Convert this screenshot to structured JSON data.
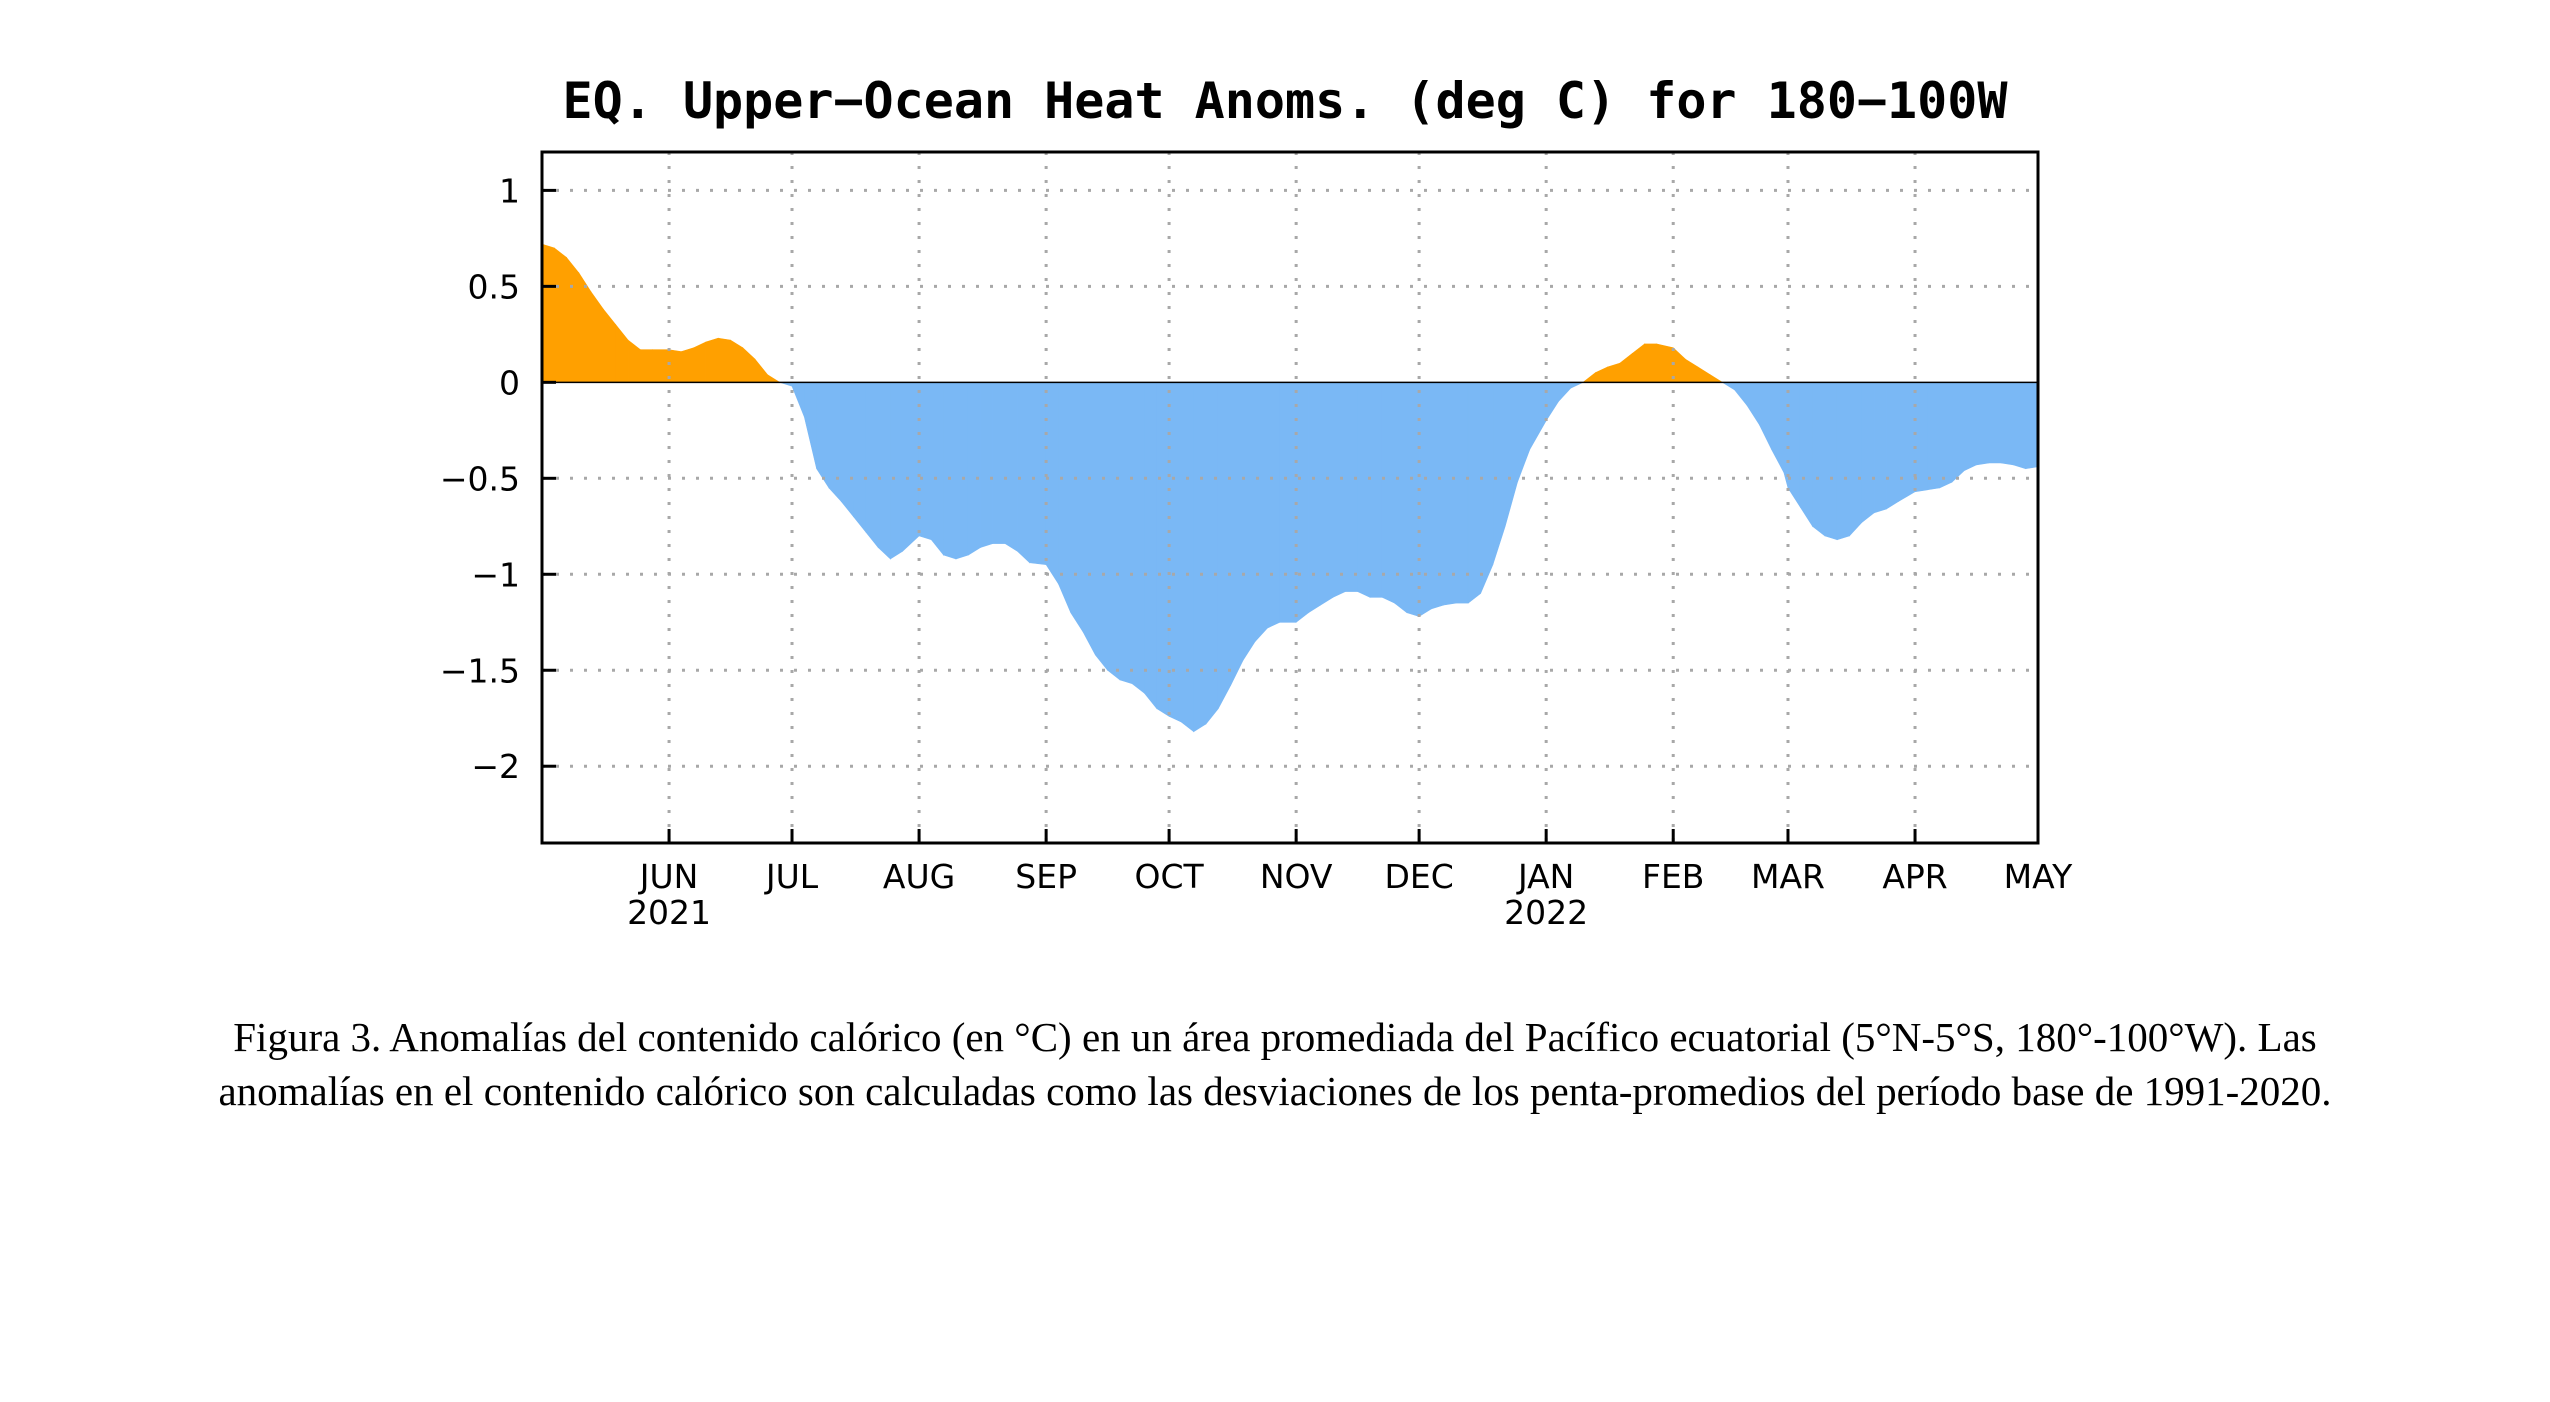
{
  "chart_data": {
    "type": "area",
    "title": "EQ. Upper−Ocean Heat Anoms. (deg C) for 180−100W",
    "ylim": [
      -2.4,
      1.2
    ],
    "xlim": [
      "2021-05-01",
      "2022-05-01"
    ],
    "y_ticks": [
      {
        "value": 1,
        "label": "1"
      },
      {
        "value": 0.5,
        "label": "0.5"
      },
      {
        "value": 0,
        "label": "0"
      },
      {
        "value": -0.5,
        "label": "−0.5"
      },
      {
        "value": -1,
        "label": "−1"
      },
      {
        "value": -1.5,
        "label": "−1.5"
      },
      {
        "value": -2,
        "label": "−2"
      }
    ],
    "x_ticks": [
      {
        "date": "2021-06-01",
        "label": "JUN",
        "sublabel": "2021"
      },
      {
        "date": "2021-07-01",
        "label": "JUL",
        "sublabel": ""
      },
      {
        "date": "2021-08-01",
        "label": "AUG",
        "sublabel": ""
      },
      {
        "date": "2021-09-01",
        "label": "SEP",
        "sublabel": ""
      },
      {
        "date": "2021-10-01",
        "label": "OCT",
        "sublabel": ""
      },
      {
        "date": "2021-11-01",
        "label": "NOV",
        "sublabel": ""
      },
      {
        "date": "2021-12-01",
        "label": "DEC",
        "sublabel": ""
      },
      {
        "date": "2022-01-01",
        "label": "JAN",
        "sublabel": "2022"
      },
      {
        "date": "2022-02-01",
        "label": "FEB",
        "sublabel": ""
      },
      {
        "date": "2022-03-01",
        "label": "MAR",
        "sublabel": ""
      },
      {
        "date": "2022-04-01",
        "label": "APR",
        "sublabel": ""
      },
      {
        "date": "2022-05-01",
        "label": "MAY",
        "sublabel": ""
      }
    ],
    "grid": true,
    "colors": {
      "positive": "#ffa000",
      "negative": "#7ab8f5"
    },
    "series": [
      {
        "x": [
          "2021-05-01",
          "2021-05-04",
          "2021-05-07",
          "2021-05-10",
          "2021-05-13",
          "2021-05-16",
          "2021-05-19",
          "2021-05-22",
          "2021-05-25",
          "2021-05-28",
          "2021-06-01",
          "2021-06-04",
          "2021-06-07",
          "2021-06-10",
          "2021-06-13",
          "2021-06-16",
          "2021-06-19",
          "2021-06-22",
          "2021-06-25",
          "2021-06-28",
          "2021-07-01",
          "2021-07-04",
          "2021-07-07",
          "2021-07-10",
          "2021-07-13",
          "2021-07-16",
          "2021-07-19",
          "2021-07-22",
          "2021-07-25",
          "2021-07-28",
          "2021-08-01",
          "2021-08-04",
          "2021-08-07",
          "2021-08-10",
          "2021-08-13",
          "2021-08-16",
          "2021-08-19",
          "2021-08-22",
          "2021-08-25",
          "2021-08-28",
          "2021-09-01",
          "2021-09-04",
          "2021-09-07",
          "2021-09-10",
          "2021-09-13",
          "2021-09-16",
          "2021-09-19",
          "2021-09-22",
          "2021-09-25",
          "2021-09-28",
          "2021-10-01",
          "2021-10-04",
          "2021-10-07",
          "2021-10-10",
          "2021-10-13",
          "2021-10-16",
          "2021-10-19",
          "2021-10-22",
          "2021-10-25",
          "2021-10-28",
          "2021-11-01",
          "2021-11-04",
          "2021-11-07",
          "2021-11-10",
          "2021-11-13",
          "2021-11-16",
          "2021-11-19",
          "2021-11-22",
          "2021-11-25",
          "2021-11-28",
          "2021-12-01",
          "2021-12-04",
          "2021-12-07",
          "2021-12-10",
          "2021-12-13",
          "2021-12-16",
          "2021-12-19",
          "2021-12-22",
          "2021-12-25",
          "2021-12-28",
          "2022-01-01",
          "2022-01-04",
          "2022-01-07",
          "2022-01-10",
          "2022-01-13",
          "2022-01-16",
          "2022-01-19",
          "2022-01-22",
          "2022-01-25",
          "2022-01-28",
          "2022-02-01",
          "2022-02-04",
          "2022-02-07",
          "2022-02-10",
          "2022-02-13",
          "2022-02-16",
          "2022-02-19",
          "2022-02-22",
          "2022-02-25",
          "2022-02-28",
          "2022-03-01",
          "2022-03-04",
          "2022-03-07",
          "2022-03-10",
          "2022-03-13",
          "2022-03-16",
          "2022-03-19",
          "2022-03-22",
          "2022-03-25",
          "2022-03-28",
          "2022-04-01",
          "2022-04-04",
          "2022-04-07",
          "2022-04-10",
          "2022-04-13",
          "2022-04-16",
          "2022-04-19",
          "2022-04-22",
          "2022-04-25",
          "2022-04-28",
          "2022-05-01"
        ],
        "y": [
          0.72,
          0.7,
          0.65,
          0.57,
          0.47,
          0.38,
          0.3,
          0.22,
          0.17,
          0.17,
          0.17,
          0.16,
          0.18,
          0.21,
          0.23,
          0.22,
          0.18,
          0.12,
          0.04,
          0.0,
          -0.02,
          -0.18,
          -0.45,
          -0.55,
          -0.62,
          -0.7,
          -0.78,
          -0.86,
          -0.92,
          -0.88,
          -0.8,
          -0.82,
          -0.9,
          -0.92,
          -0.9,
          -0.86,
          -0.84,
          -0.84,
          -0.88,
          -0.94,
          -0.95,
          -1.05,
          -1.2,
          -1.3,
          -1.42,
          -1.5,
          -1.55,
          -1.57,
          -1.62,
          -1.7,
          -1.74,
          -1.77,
          -1.82,
          -1.78,
          -1.7,
          -1.58,
          -1.45,
          -1.35,
          -1.28,
          -1.25,
          -1.25,
          -1.2,
          -1.16,
          -1.12,
          -1.09,
          -1.09,
          -1.12,
          -1.12,
          -1.15,
          -1.2,
          -1.22,
          -1.18,
          -1.16,
          -1.15,
          -1.15,
          -1.1,
          -0.95,
          -0.75,
          -0.52,
          -0.35,
          -0.2,
          -0.1,
          -0.03,
          0.0,
          0.05,
          0.08,
          0.1,
          0.15,
          0.2,
          0.2,
          0.18,
          0.12,
          0.08,
          0.04,
          0.0,
          -0.04,
          -0.12,
          -0.22,
          -0.35,
          -0.47,
          -0.55,
          -0.65,
          -0.75,
          -0.8,
          -0.82,
          -0.8,
          -0.73,
          -0.68,
          -0.66,
          -0.62,
          -0.57,
          -0.56,
          -0.55,
          -0.52,
          -0.46,
          -0.43,
          -0.42,
          -0.42,
          -0.43,
          -0.45,
          -0.44
        ]
      }
    ]
  },
  "caption": "Figura 3. Anomalías del contenido calórico (en °C) en un área promediada del Pacífico ecuatorial (5°N-5°S, 180°-100°W). Las anomalías en el contenido calórico son calculadas como las desviaciones de los penta-promedios del período base de 1991-2020."
}
